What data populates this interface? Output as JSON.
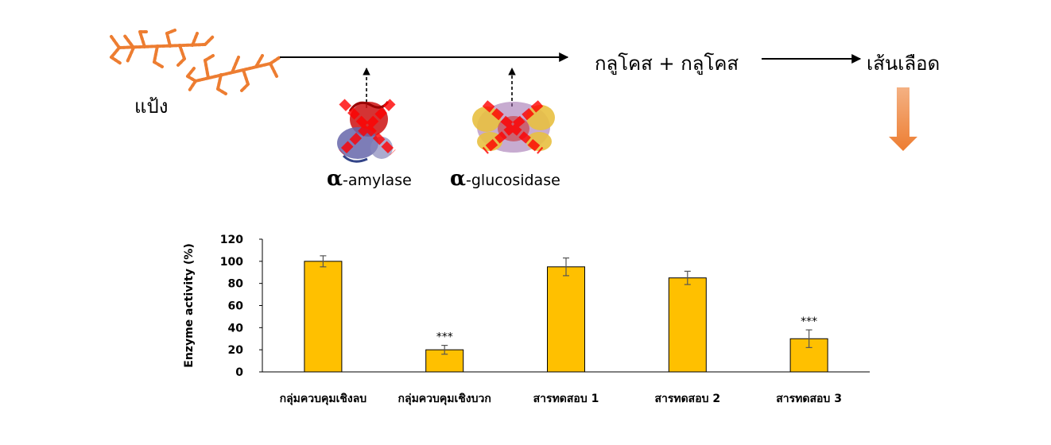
{
  "pathway": {
    "starch_label": "แป้ง",
    "products_label": "กลูโคส + กลูโคส",
    "blood_label": "เส้นเลือด",
    "enzymes": [
      {
        "symbol": "α",
        "name": "-amylase"
      },
      {
        "symbol": "α",
        "name": "-glucosidase"
      }
    ],
    "colors": {
      "starch": "#ED7D31",
      "inhibit_cross": "#FF0000",
      "down_arrow": "#ED7D31",
      "amylase_protein": [
        "#CC1111",
        "#5555AA"
      ],
      "glucosidase_protein": [
        "#E8C040",
        "#9966AA",
        "#CC3333"
      ]
    }
  },
  "chart_data": {
    "type": "bar",
    "categories": [
      "กลุ่มควบคุมเชิงลบ",
      "กลุ่มควบคุมเชิงบวก",
      "สารทดสอบ 1",
      "สารทดสอบ 2",
      "สารทดสอบ 3"
    ],
    "values": [
      100,
      20,
      95,
      85,
      30
    ],
    "errors": [
      5,
      4,
      8,
      6,
      8
    ],
    "annotations": [
      "",
      "***",
      "",
      "",
      "***"
    ],
    "ylabel": "Enzyme activity (%)",
    "xlabel": "",
    "ylim": [
      0,
      120
    ],
    "yticks": [
      0,
      20,
      40,
      60,
      80,
      100,
      120
    ],
    "grid": false,
    "bar_color": "#FFC000",
    "bar_edge_color": "#000000"
  }
}
